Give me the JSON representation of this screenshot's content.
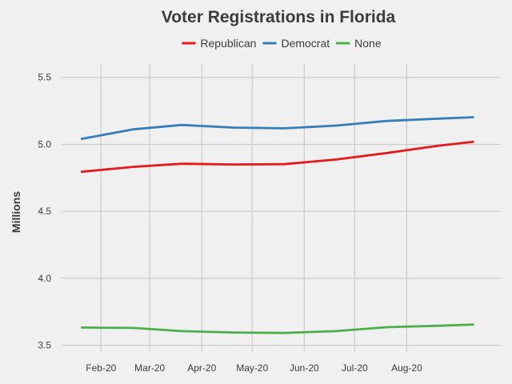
{
  "chart_data": {
    "type": "line",
    "title": "Voter Registrations in Florida",
    "xlabel": "",
    "ylabel": "Millions",
    "ylim": [
      3.45,
      5.6
    ],
    "xlim": [
      "2020-01-09",
      "2020-09-26"
    ],
    "yticks": [
      3.5,
      4.0,
      4.5,
      5.0,
      5.5
    ],
    "ytick_labels": [
      "3.5",
      "4.0",
      "4.5",
      "5.0",
      "5.5"
    ],
    "xticks": [
      "2020-02-01",
      "2020-03-01",
      "2020-04-01",
      "2020-05-01",
      "2020-06-01",
      "2020-07-01",
      "2020-08-01"
    ],
    "xtick_labels": [
      "Feb-20",
      "Mar-20",
      "Apr-20",
      "May-20",
      "Jun-20",
      "Jul-20",
      "Aug-20"
    ],
    "x": [
      "2020-01-20",
      "2020-02-20",
      "2020-03-20",
      "2020-04-20",
      "2020-05-20",
      "2020-06-20",
      "2020-07-20",
      "2020-08-20",
      "2020-09-10"
    ],
    "grid": true,
    "legend_position": "top-center",
    "series": [
      {
        "name": "Republican",
        "color": "#e41a1c",
        "values": [
          4.795,
          4.832,
          4.855,
          4.85,
          4.852,
          4.887,
          4.935,
          4.99,
          5.02
        ]
      },
      {
        "name": "Democrat",
        "color": "#377eb8",
        "values": [
          5.04,
          5.112,
          5.145,
          5.125,
          5.12,
          5.14,
          5.175,
          5.192,
          5.203
        ]
      },
      {
        "name": "None",
        "color": "#4daf4a",
        "values": [
          3.633,
          3.63,
          3.606,
          3.596,
          3.592,
          3.606,
          3.635,
          3.646,
          3.655
        ]
      }
    ]
  }
}
